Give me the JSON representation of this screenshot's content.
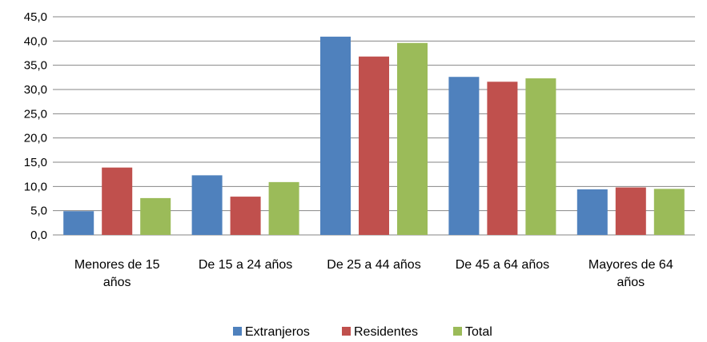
{
  "chart_data": {
    "type": "bar",
    "categories": [
      [
        "Menores de 15",
        "años"
      ],
      [
        "De 15 a 24 años"
      ],
      [
        "De 25 a 44 años"
      ],
      [
        "De 45 a 64 años"
      ],
      [
        "Mayores de 64",
        "años"
      ]
    ],
    "series": [
      {
        "name": "Extranjeros",
        "color": "#4f81bd",
        "values": [
          4.9,
          12.3,
          40.9,
          32.6,
          9.4
        ]
      },
      {
        "name": "Residentes",
        "color": "#c0504d",
        "values": [
          13.9,
          7.9,
          36.8,
          31.6,
          9.8
        ]
      },
      {
        "name": "Total",
        "color": "#9bbb59",
        "values": [
          7.6,
          10.9,
          39.6,
          32.3,
          9.5
        ]
      }
    ],
    "ylim": [
      0,
      45
    ],
    "ytick_step": 5,
    "ytick_labels": [
      "0,0",
      "5,0",
      "10,0",
      "15,0",
      "20,0",
      "25,0",
      "30,0",
      "35,0",
      "40,0",
      "45,0"
    ],
    "grid": true,
    "legend_position": "bottom"
  }
}
